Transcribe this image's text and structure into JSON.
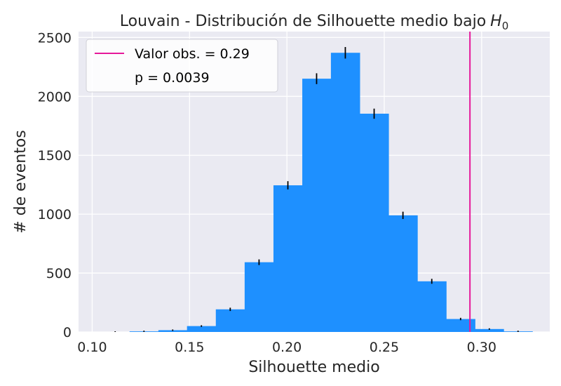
{
  "chart_data": {
    "type": "bar",
    "title": "Louvain - Distribución de Silhouette medio bajo",
    "title_math": {
      "base": "H",
      "subscript": "0"
    },
    "xlabel": "Silhouette medio",
    "ylabel": "# de eventos",
    "xlim": [
      0.093,
      0.335
    ],
    "ylim": [
      0,
      2550
    ],
    "x_ticks": [
      0.1,
      0.15,
      0.2,
      0.25,
      0.3
    ],
    "x_tick_labels": [
      "0.10",
      "0.15",
      "0.20",
      "0.25",
      "0.30"
    ],
    "y_ticks": [
      0,
      500,
      1000,
      1500,
      2000,
      2500
    ],
    "y_tick_labels": [
      "0",
      "500",
      "1000",
      "1500",
      "2000",
      "2500"
    ],
    "grid": true,
    "background_color": "#EAEAF2",
    "bar_color": "#1E90FF",
    "error_bar_color": "#000000",
    "bins": [
      {
        "x0": 0.1044,
        "x1": 0.1192,
        "value": 0,
        "error": 0
      },
      {
        "x0": 0.1192,
        "x1": 0.134,
        "value": 5,
        "error": 2
      },
      {
        "x0": 0.134,
        "x1": 0.1487,
        "value": 15,
        "error": 4
      },
      {
        "x0": 0.1487,
        "x1": 0.1635,
        "value": 50,
        "error": 7
      },
      {
        "x0": 0.1635,
        "x1": 0.1783,
        "value": 192,
        "error": 14
      },
      {
        "x0": 0.1783,
        "x1": 0.1931,
        "value": 592,
        "error": 24
      },
      {
        "x0": 0.1931,
        "x1": 0.2079,
        "value": 1245,
        "error": 35
      },
      {
        "x0": 0.2079,
        "x1": 0.2226,
        "value": 2150,
        "error": 46
      },
      {
        "x0": 0.2226,
        "x1": 0.2374,
        "value": 2370,
        "error": 49
      },
      {
        "x0": 0.2374,
        "x1": 0.2522,
        "value": 1853,
        "error": 43
      },
      {
        "x0": 0.2522,
        "x1": 0.267,
        "value": 990,
        "error": 31
      },
      {
        "x0": 0.267,
        "x1": 0.2818,
        "value": 430,
        "error": 21
      },
      {
        "x0": 0.2818,
        "x1": 0.2966,
        "value": 110,
        "error": 10
      },
      {
        "x0": 0.2966,
        "x1": 0.3113,
        "value": 25,
        "error": 5
      },
      {
        "x0": 0.3113,
        "x1": 0.3261,
        "value": 5,
        "error": 2
      }
    ],
    "observed_line": {
      "x": 0.294,
      "color": "#E6199A"
    },
    "legend": {
      "position": "top-left",
      "entries": [
        "Valor obs. = 0.29",
        "p = 0.0039"
      ]
    }
  }
}
